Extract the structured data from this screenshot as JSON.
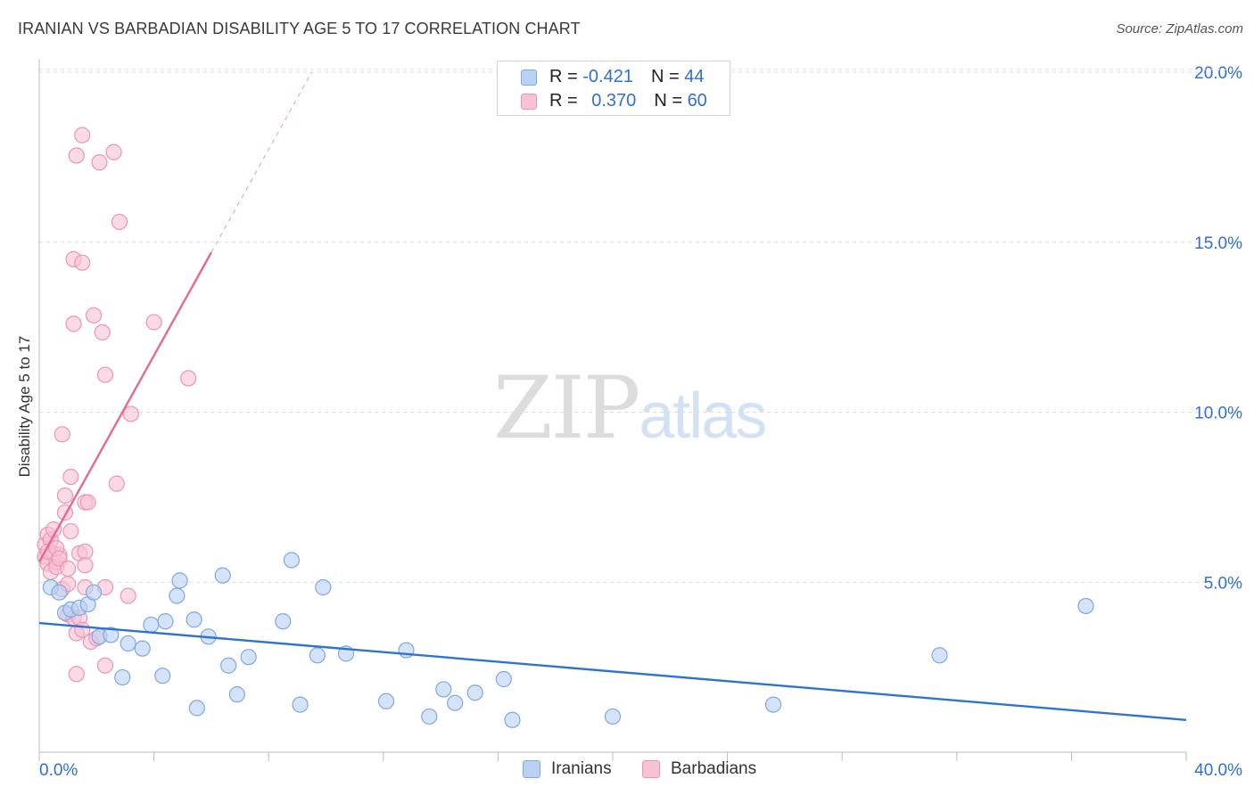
{
  "header": {
    "title": "IRANIAN VS BARBADIAN DISABILITY AGE 5 TO 17 CORRELATION CHART",
    "source": "Source: ZipAtlas.com"
  },
  "watermark": {
    "zip": "ZIP",
    "atlas": "atlas"
  },
  "legend_box": {
    "rows": [
      {
        "r_label": "R = ",
        "r_value": "-0.421",
        "n_label": "N = ",
        "n_value": "44"
      },
      {
        "r_label": "R = ",
        "r_value": "0.370",
        "n_label": "N = ",
        "n_value": "60"
      }
    ]
  },
  "bottom_legend": {
    "iranians": "Iranians",
    "barbadians": "Barbadians"
  },
  "axis": {
    "ylabel": "Disability Age 5 to 17",
    "x_left_label": "0.0%",
    "x_right_label": "40.0%",
    "y_ticks": [
      "5.0%",
      "10.0%",
      "15.0%",
      "20.0%"
    ]
  },
  "colors": {
    "iranians_fill": "#b9d1f3",
    "iranians_stroke": "#7ea8e3",
    "iranians_line": "#2f73d2",
    "barbadians_fill": "#f7c2d4",
    "barbadians_stroke": "#ef93b2",
    "barbadians_line": "#e46a96",
    "tick_label": "#2f6fd6",
    "grid": "#dddddd"
  },
  "chart_data": {
    "type": "scatter",
    "title": "IRANIAN VS BARBADIAN DISABILITY AGE 5 TO 17 CORRELATION CHART",
    "xlabel": "",
    "ylabel": "Disability Age 5 to 17",
    "xlim": [
      0,
      40
    ],
    "ylim": [
      0,
      20.5
    ],
    "y_ticks": [
      5,
      10,
      15,
      20
    ],
    "series": [
      {
        "name": "Iranians",
        "R": -0.421,
        "N": 44,
        "trend": {
          "x0": 0,
          "y0": 3.8,
          "x1": 40,
          "y1": 0.95
        },
        "points": [
          [
            0.4,
            4.85
          ],
          [
            0.7,
            4.7
          ],
          [
            0.9,
            4.1
          ],
          [
            1.1,
            4.2
          ],
          [
            1.4,
            4.25
          ],
          [
            1.7,
            4.35
          ],
          [
            1.9,
            4.7
          ],
          [
            2.1,
            3.4
          ],
          [
            2.5,
            3.45
          ],
          [
            2.9,
            2.2
          ],
          [
            3.1,
            3.2
          ],
          [
            3.6,
            3.05
          ],
          [
            3.9,
            3.75
          ],
          [
            4.3,
            2.25
          ],
          [
            4.4,
            3.85
          ],
          [
            4.8,
            4.6
          ],
          [
            4.9,
            5.05
          ],
          [
            5.4,
            3.9
          ],
          [
            5.5,
            1.3
          ],
          [
            5.9,
            3.4
          ],
          [
            6.4,
            5.2
          ],
          [
            6.6,
            2.55
          ],
          [
            6.9,
            1.7
          ],
          [
            7.3,
            2.8
          ],
          [
            8.5,
            3.85
          ],
          [
            8.8,
            5.65
          ],
          [
            9.1,
            1.4
          ],
          [
            9.7,
            2.85
          ],
          [
            9.9,
            4.85
          ],
          [
            10.7,
            2.9
          ],
          [
            12.1,
            1.5
          ],
          [
            12.8,
            3.0
          ],
          [
            13.6,
            1.05
          ],
          [
            14.1,
            1.85
          ],
          [
            14.5,
            1.45
          ],
          [
            15.2,
            1.75
          ],
          [
            16.2,
            2.15
          ],
          [
            16.5,
            0.95
          ],
          [
            20.0,
            1.05
          ],
          [
            25.6,
            1.4
          ],
          [
            31.4,
            2.85
          ],
          [
            36.5,
            4.3
          ]
        ]
      },
      {
        "name": "Barbadians",
        "R": 0.37,
        "N": 60,
        "trend": {
          "x0": 0,
          "y0": 5.6,
          "x1": 6.0,
          "y1": 14.7,
          "dash_to_x": 9.5,
          "dash_to_y": 20.0
        },
        "points": [
          [
            0.2,
            6.1
          ],
          [
            0.2,
            5.75
          ],
          [
            0.3,
            6.4
          ],
          [
            0.3,
            5.55
          ],
          [
            0.4,
            6.25
          ],
          [
            0.4,
            5.3
          ],
          [
            0.5,
            5.85
          ],
          [
            0.5,
            6.55
          ],
          [
            0.6,
            5.6
          ],
          [
            0.6,
            5.45
          ],
          [
            0.7,
            5.8
          ],
          [
            0.8,
            4.8
          ],
          [
            0.8,
            9.35
          ],
          [
            0.9,
            7.55
          ],
          [
            0.9,
            7.05
          ],
          [
            1.0,
            4.05
          ],
          [
            1.0,
            4.95
          ],
          [
            1.1,
            8.1
          ],
          [
            1.1,
            6.5
          ],
          [
            1.2,
            3.95
          ],
          [
            1.2,
            12.6
          ],
          [
            1.2,
            14.5
          ],
          [
            1.3,
            3.5
          ],
          [
            1.3,
            2.3
          ],
          [
            1.3,
            17.55
          ],
          [
            1.4,
            3.95
          ],
          [
            1.4,
            5.85
          ],
          [
            1.5,
            3.6
          ],
          [
            1.5,
            18.15
          ],
          [
            1.5,
            14.4
          ],
          [
            1.6,
            5.9
          ],
          [
            1.6,
            4.85
          ],
          [
            1.6,
            5.5
          ],
          [
            1.6,
            7.35
          ],
          [
            1.7,
            7.35
          ],
          [
            1.8,
            3.25
          ],
          [
            1.9,
            12.85
          ],
          [
            2.0,
            3.35
          ],
          [
            2.1,
            17.35
          ],
          [
            2.2,
            12.35
          ],
          [
            2.3,
            11.1
          ],
          [
            2.3,
            4.85
          ],
          [
            2.3,
            2.55
          ],
          [
            2.6,
            17.65
          ],
          [
            2.7,
            7.9
          ],
          [
            2.8,
            15.6
          ],
          [
            3.1,
            4.6
          ],
          [
            3.2,
            9.95
          ],
          [
            4.0,
            12.65
          ],
          [
            5.2,
            11.0
          ],
          [
            0.3,
            5.9
          ],
          [
            0.6,
            6.0
          ],
          [
            0.7,
            5.7
          ],
          [
            1.0,
            5.4
          ]
        ]
      }
    ]
  }
}
